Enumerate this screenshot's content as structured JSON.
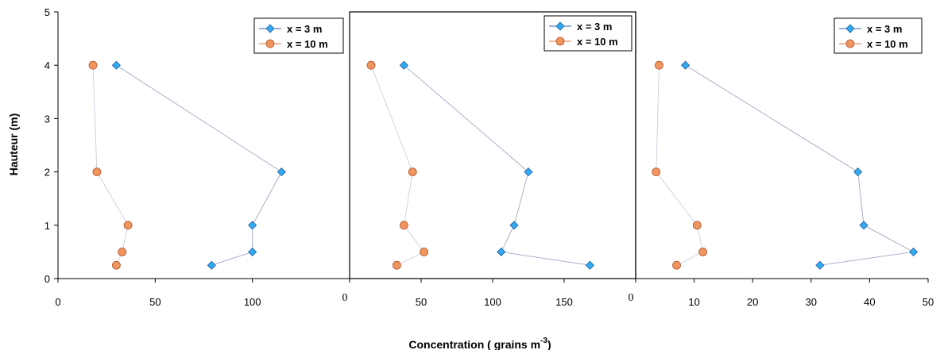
{
  "figure": {
    "ylabel": "Hauteur (m)",
    "xlabel_main": "Concentration  ( grains m",
    "xlabel_sup": "-3",
    "xlabel_end": ")"
  },
  "colors": {
    "series_3m": "#33a9f0",
    "series_10m": "#f0955e",
    "series_3m_line": "#9fa9c4",
    "series_10m_line": "#c8cfe0"
  },
  "icons": {
    "series_3m": "diamond-marker",
    "series_10m": "circle-marker"
  },
  "chart_data": [
    {
      "type": "line",
      "xlim": [
        0,
        150
      ],
      "ylim": [
        0,
        5
      ],
      "xticks": [
        "0",
        "50",
        "100"
      ],
      "yticks": [
        "0",
        "1",
        "2",
        "3",
        "4",
        "5"
      ],
      "legend": "top-right",
      "series": [
        {
          "name": "x = 3 m",
          "x": [
            79,
            100,
            100,
            115,
            30
          ],
          "y": [
            0.25,
            0.5,
            1,
            2,
            4
          ]
        },
        {
          "name": "x = 10 m",
          "x": [
            30,
            33,
            36,
            20,
            18
          ],
          "y": [
            0.25,
            0.5,
            1,
            2,
            4
          ]
        }
      ]
    },
    {
      "type": "line",
      "xlim": [
        0,
        200
      ],
      "ylim": [
        0,
        5
      ],
      "xticks": [
        "0",
        "50",
        "100",
        "150"
      ],
      "legend": "top-right",
      "series": [
        {
          "name": "x = 3 m",
          "x": [
            168,
            106,
            115,
            125,
            38
          ],
          "y": [
            0.25,
            0.5,
            1,
            2,
            4
          ]
        },
        {
          "name": "x = 10 m",
          "x": [
            33,
            52,
            38,
            44,
            15
          ],
          "y": [
            0.25,
            0.5,
            1,
            2,
            4
          ]
        }
      ]
    },
    {
      "type": "line",
      "xlim": [
        0,
        50
      ],
      "ylim": [
        0,
        5
      ],
      "xticks": [
        "0",
        "10",
        "20",
        "30",
        "40",
        "50"
      ],
      "legend": "top-right",
      "series": [
        {
          "name": "x = 3 m",
          "x": [
            31.5,
            47.5,
            39,
            38,
            8.5
          ],
          "y": [
            0.25,
            0.5,
            1,
            2,
            4
          ]
        },
        {
          "name": "x = 10 m",
          "x": [
            7,
            11.5,
            10.5,
            3.5,
            4
          ],
          "y": [
            0.25,
            0.5,
            1,
            2,
            4
          ]
        }
      ]
    }
  ]
}
